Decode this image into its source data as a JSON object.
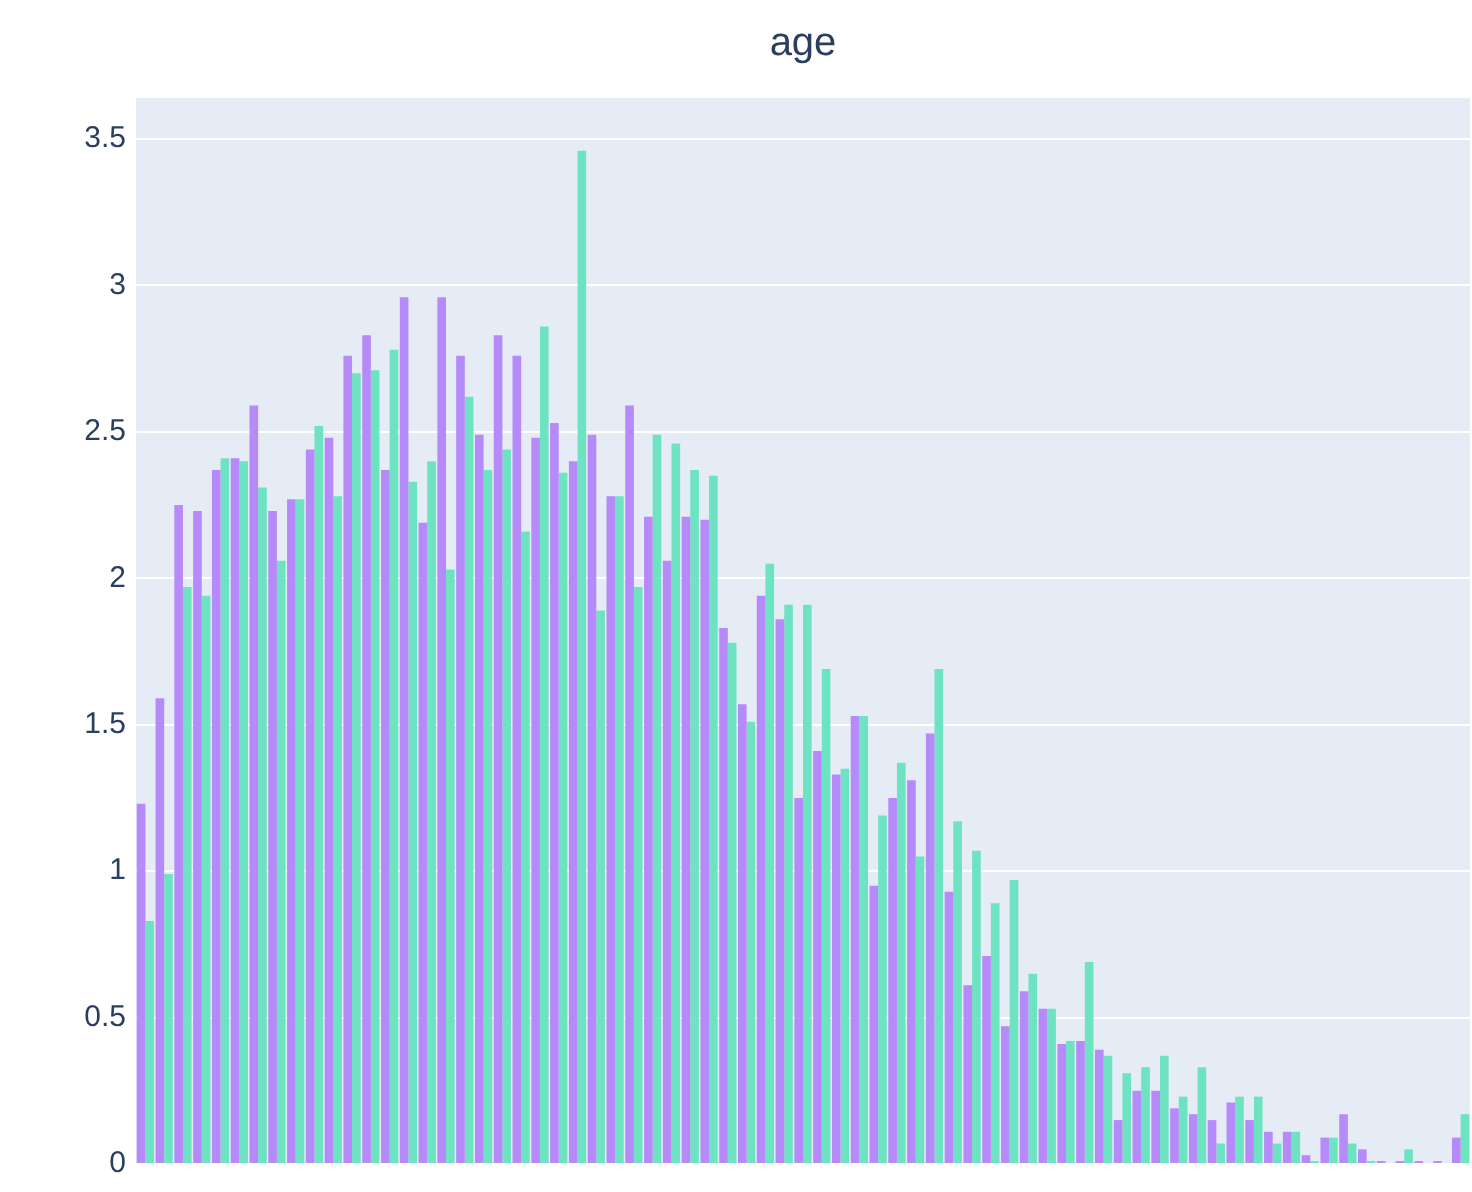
{
  "chart_data": {
    "type": "bar",
    "title": "age",
    "categories": [
      null,
      null,
      null,
      null,
      null,
      null,
      null,
      null,
      null,
      null,
      null,
      null,
      null,
      null,
      null,
      null,
      null,
      null,
      null,
      null,
      null,
      null,
      null,
      null,
      null,
      null,
      null,
      null,
      null,
      null,
      null,
      null,
      null,
      null,
      null,
      null,
      null,
      null,
      null,
      null,
      null,
      null,
      null,
      null,
      null,
      null,
      null,
      null,
      null,
      null,
      null,
      null,
      null,
      null,
      null,
      null,
      null,
      null,
      null,
      null,
      null,
      null,
      null,
      null,
      null,
      null,
      null,
      null,
      null,
      null,
      null
    ],
    "series": [
      {
        "color": "#b68af8",
        "values": [
          1.23,
          1.59,
          2.25,
          2.23,
          2.37,
          2.41,
          2.59,
          2.23,
          2.27,
          2.44,
          2.48,
          2.76,
          2.83,
          2.37,
          2.96,
          2.19,
          2.96,
          2.76,
          2.49,
          2.83,
          2.76,
          2.48,
          2.53,
          2.4,
          2.49,
          2.28,
          2.59,
          2.21,
          2.06,
          2.21,
          2.2,
          1.83,
          1.57,
          1.94,
          1.86,
          1.25,
          1.41,
          1.33,
          1.53,
          0.95,
          1.25,
          1.31,
          1.47,
          0.93,
          0.61,
          0.71,
          0.47,
          0.59,
          0.53,
          0.41,
          0.42,
          0.39,
          0.15,
          0.25,
          0.25,
          0.19,
          0.17,
          0.15,
          0.21,
          0.15,
          0.11,
          0.11,
          0.03,
          0.09,
          0.17,
          0.05,
          0.01,
          0.01,
          0.01,
          0.01,
          0.09
        ]
      },
      {
        "color": "#6ee3c2",
        "values": [
          0.83,
          0.99,
          1.97,
          1.94,
          2.41,
          2.4,
          2.31,
          2.06,
          2.27,
          2.52,
          2.28,
          2.7,
          2.71,
          2.78,
          2.33,
          2.4,
          2.03,
          2.62,
          2.37,
          2.44,
          2.16,
          2.86,
          2.36,
          3.46,
          1.89,
          2.28,
          1.97,
          2.49,
          2.46,
          2.37,
          2.35,
          1.78,
          1.51,
          2.05,
          1.91,
          1.91,
          1.69,
          1.35,
          1.53,
          1.19,
          1.37,
          1.05,
          1.69,
          1.17,
          1.07,
          0.89,
          0.97,
          0.65,
          0.53,
          0.42,
          0.69,
          0.37,
          0.31,
          0.33,
          0.37,
          0.23,
          0.33,
          0.07,
          0.23,
          0.23,
          0.07,
          0.11,
          0.01,
          0.09,
          0.07,
          0.01,
          0,
          0.05,
          0,
          0,
          0.17
        ]
      }
    ],
    "ylim": [
      0,
      3.64
    ],
    "yticks": [
      0,
      0.5,
      1,
      1.5,
      2,
      2.5,
      3,
      3.5
    ],
    "grid": "y",
    "tick_labels": "y"
  }
}
